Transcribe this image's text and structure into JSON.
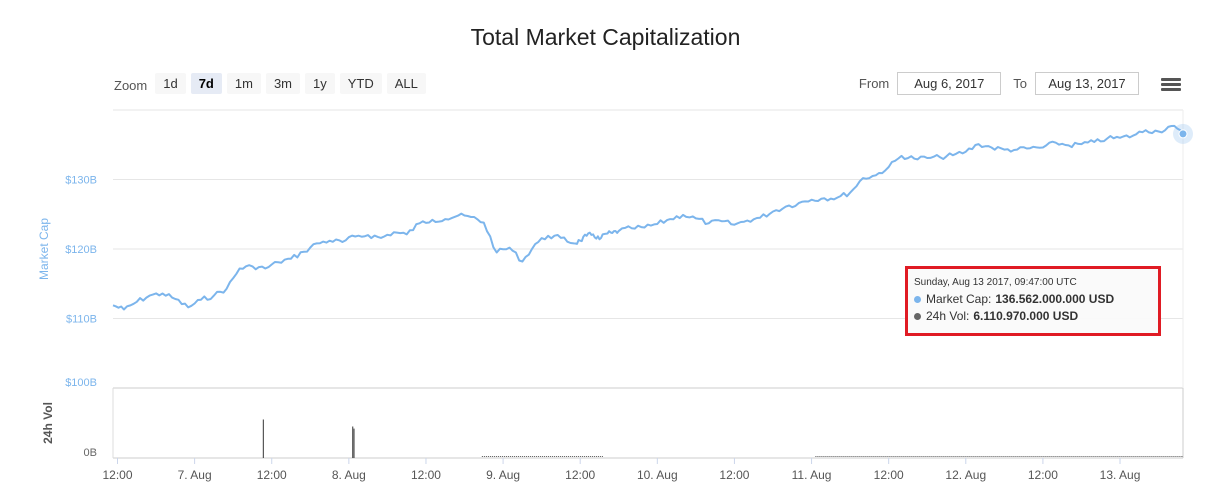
{
  "title": "Total Market Capitalization",
  "zoom": {
    "label": "Zoom",
    "buttons": [
      "1d",
      "7d",
      "1m",
      "3m",
      "1y",
      "YTD",
      "ALL"
    ],
    "active": "7d"
  },
  "range": {
    "from_label": "From",
    "from_value": "Aug 6, 2017",
    "to_label": "To",
    "to_value": "Aug 13, 2017"
  },
  "tooltip": {
    "title": "Sunday, Aug 13 2017, 09:47:00 UTC",
    "rows": [
      {
        "label": "Market Cap:",
        "value": "136.562.000.000 USD",
        "color": "#7cb5ec"
      },
      {
        "label": "24h Vol:",
        "value": "6.110.970.000 USD",
        "color": "#666666"
      }
    ]
  },
  "colors": {
    "market_cap": "#7cb5ec",
    "volume": "#555555",
    "grid": "#e6e6e6",
    "axis_label": "#7cb5ec",
    "highlight": "#e01b24"
  },
  "chart_data": {
    "type": "line",
    "title": "Total Market Capitalization",
    "x_tick_labels": [
      "12:00",
      "7. Aug",
      "12:00",
      "8. Aug",
      "12:00",
      "9. Aug",
      "12:00",
      "10. Aug",
      "12:00",
      "11. Aug",
      "12:00",
      "12. Aug",
      "12:00",
      "13. Aug"
    ],
    "x_tick_hours": [
      12,
      24,
      36,
      48,
      60,
      72,
      84,
      96,
      108,
      120,
      132,
      144,
      156,
      168
    ],
    "x_range_hours": [
      11.3,
      177.8
    ],
    "upper": {
      "ylabel": "Market Cap",
      "ylim": [
        100,
        140
      ],
      "y_ticks": [
        100,
        110,
        120,
        130
      ],
      "y_tick_labels": [
        "$100B",
        "$110B",
        "$120B",
        "$130B"
      ],
      "series": [
        {
          "name": "Market Cap",
          "unit": "B USD",
          "x": [
            11.3,
            13,
            15,
            17,
            19,
            21,
            23,
            25,
            27,
            29,
            31,
            33,
            35,
            37,
            39,
            41,
            43,
            45,
            47,
            49,
            51,
            53,
            55,
            57,
            59,
            61,
            63,
            65,
            67,
            69,
            71,
            73,
            75,
            77,
            79,
            81,
            83,
            84,
            85,
            86,
            87,
            88,
            89,
            90,
            92,
            94,
            96,
            98,
            100,
            102,
            104,
            106,
            108,
            110,
            112,
            114,
            116,
            118,
            120,
            122,
            124,
            126,
            128,
            130,
            132,
            134,
            136,
            138,
            140,
            142,
            144,
            146,
            148,
            150,
            152,
            154,
            156,
            158,
            160,
            162,
            164,
            166,
            168,
            170,
            172,
            174,
            176,
            177.8
          ],
          "values": [
            111.9,
            111.3,
            112.4,
            113.3,
            113.6,
            112.8,
            111.6,
            112.7,
            113.3,
            114.3,
            117.2,
            117.5,
            117.2,
            118.1,
            118.6,
            119.6,
            120.8,
            121.2,
            121.0,
            121.8,
            122.0,
            121.6,
            122.4,
            122.1,
            123.7,
            124.2,
            124.3,
            124.8,
            124.6,
            123.8,
            119.5,
            120.2,
            118.2,
            120.7,
            121.9,
            121.6,
            120.8,
            121.2,
            121.9,
            122.1,
            121.4,
            122.2,
            122.3,
            122.6,
            123.0,
            123.1,
            123.6,
            124.3,
            124.9,
            124.4,
            123.7,
            124.0,
            123.5,
            124.1,
            124.5,
            125.4,
            126.1,
            126.6,
            127.1,
            127.3,
            127.4,
            128.1,
            130.2,
            130.6,
            131.8,
            133.4,
            133.0,
            133.1,
            133.2,
            133.5,
            134.0,
            135.1,
            134.6,
            134.3,
            134.3,
            134.5,
            134.6,
            135.3,
            134.9,
            135.1,
            135.4,
            135.9,
            136.0,
            136.3,
            137.1,
            136.9,
            137.7,
            136.562
          ]
        }
      ]
    },
    "lower": {
      "ylabel": "24h Vol",
      "y_ticks": [
        0
      ],
      "y_tick_labels": [
        "0B"
      ],
      "ylim": [
        0,
        10
      ],
      "series": [
        {
          "name": "24h Vol",
          "spikes_x": [
            34.7,
            48.6,
            48.8
          ],
          "spikes_values": [
            5.5,
            4.5,
            4.2
          ],
          "baseline_segments": [
            [
              68.7,
              87.6
            ],
            [
              120.6,
              177.8
            ]
          ],
          "baseline_value": 0.1
        }
      ]
    }
  }
}
